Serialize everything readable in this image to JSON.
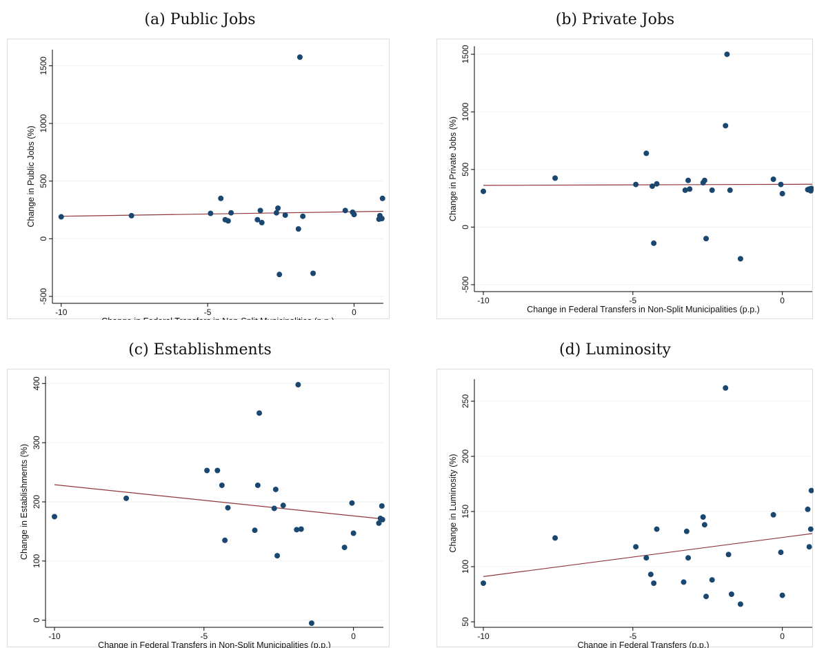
{
  "style": {
    "point_color": "#1a476f",
    "fit_color": "#90353b",
    "grid_color": "#eaf2f3",
    "axis_color": "#000000"
  },
  "chart_data": [
    {
      "type": "scatter",
      "title": "(a) Public Jobs",
      "xlabel": "Change in Federal Transfers in Non-Split Municipalities (p.p.)",
      "ylabel": "Change in Public Jobs (%)",
      "xlim": [
        -10.3,
        1.0
      ],
      "ylim": [
        -560,
        1640
      ],
      "xticks": [
        -10,
        -5,
        0
      ],
      "yticks": [
        -500,
        0,
        500,
        1000,
        1500
      ],
      "points": [
        [
          -10.0,
          190
        ],
        [
          -7.6,
          200
        ],
        [
          -4.9,
          220
        ],
        [
          -4.55,
          350
        ],
        [
          -4.4,
          165
        ],
        [
          -4.3,
          155
        ],
        [
          -4.2,
          225
        ],
        [
          -3.3,
          165
        ],
        [
          -3.2,
          245
        ],
        [
          -3.15,
          140
        ],
        [
          -2.65,
          225
        ],
        [
          -2.6,
          265
        ],
        [
          -2.55,
          -310
        ],
        [
          -2.35,
          205
        ],
        [
          -1.9,
          85
        ],
        [
          -1.85,
          1575
        ],
        [
          -1.75,
          195
        ],
        [
          -1.4,
          -300
        ],
        [
          -0.3,
          245
        ],
        [
          -0.05,
          230
        ],
        [
          0.0,
          210
        ],
        [
          0.85,
          170
        ],
        [
          0.88,
          200
        ],
        [
          0.9,
          175
        ],
        [
          0.95,
          175
        ],
        [
          0.97,
          350
        ]
      ],
      "fit_line": [
        [
          -10.0,
          195
        ],
        [
          1.0,
          238
        ]
      ]
    },
    {
      "type": "scatter",
      "title": "(b) Private Jobs",
      "xlabel": "Change in Federal Transfers in Non-Split Municipalities (p.p.)",
      "ylabel": "Change in Private Jobs (%)",
      "xlim": [
        -10.3,
        1.0
      ],
      "ylim": [
        -560,
        1570
      ],
      "xticks": [
        -10,
        -5,
        0
      ],
      "yticks": [
        -500,
        0,
        500,
        1000,
        1500
      ],
      "points": [
        [
          -10.0,
          310
        ],
        [
          -7.6,
          425
        ],
        [
          -4.9,
          370
        ],
        [
          -4.55,
          640
        ],
        [
          -4.35,
          355
        ],
        [
          -4.3,
          -140
        ],
        [
          -4.2,
          375
        ],
        [
          -3.25,
          320
        ],
        [
          -3.15,
          405
        ],
        [
          -3.1,
          330
        ],
        [
          -2.65,
          385
        ],
        [
          -2.6,
          405
        ],
        [
          -2.55,
          -100
        ],
        [
          -2.35,
          320
        ],
        [
          -1.9,
          880
        ],
        [
          -1.85,
          1500
        ],
        [
          -1.75,
          320
        ],
        [
          -1.4,
          -275
        ],
        [
          -0.3,
          415
        ],
        [
          -0.05,
          370
        ],
        [
          0.0,
          290
        ],
        [
          0.85,
          325
        ],
        [
          0.9,
          330
        ],
        [
          0.95,
          315
        ],
        [
          0.97,
          335
        ]
      ],
      "fit_line": [
        [
          -10.0,
          362
        ],
        [
          1.0,
          372
        ]
      ]
    },
    {
      "type": "scatter",
      "title": "(c) Establishments",
      "xlabel": "Change in Federal Transfers in Non-Split Municipalities (p.p.)",
      "ylabel": "Change in Establishments (%)",
      "xlim": [
        -10.3,
        1.0
      ],
      "ylim": [
        -12,
        412
      ],
      "xticks": [
        -10,
        -5,
        0
      ],
      "yticks": [
        0,
        100,
        200,
        300,
        400
      ],
      "points": [
        [
          -10.0,
          175
        ],
        [
          -7.6,
          206
        ],
        [
          -4.9,
          253
        ],
        [
          -4.55,
          253
        ],
        [
          -4.4,
          228
        ],
        [
          -4.3,
          135
        ],
        [
          -4.2,
          190
        ],
        [
          -3.3,
          152
        ],
        [
          -3.2,
          228
        ],
        [
          -3.15,
          350
        ],
        [
          -2.65,
          189
        ],
        [
          -2.6,
          221
        ],
        [
          -2.55,
          109
        ],
        [
          -2.35,
          194
        ],
        [
          -1.9,
          153
        ],
        [
          -1.85,
          398
        ],
        [
          -1.75,
          154
        ],
        [
          -1.4,
          -5
        ],
        [
          -0.3,
          123
        ],
        [
          -0.05,
          198
        ],
        [
          0.0,
          147
        ],
        [
          0.85,
          164
        ],
        [
          0.9,
          172
        ],
        [
          0.95,
          193
        ],
        [
          0.97,
          170
        ]
      ],
      "fit_line": [
        [
          -10.0,
          229
        ],
        [
          1.0,
          171
        ]
      ]
    },
    {
      "type": "scatter",
      "title": "(d) Luminosity",
      "xlabel": "Change in Federal Transfers (p.p.)",
      "ylabel": "Change in Luminosity (%)",
      "xlim": [
        -10.3,
        1.0
      ],
      "ylim": [
        45,
        270
      ],
      "xticks": [
        -10,
        -5,
        0
      ],
      "yticks": [
        50,
        100,
        150,
        200,
        250
      ],
      "points": [
        [
          -10.0,
          85
        ],
        [
          -7.6,
          126
        ],
        [
          -4.9,
          118
        ],
        [
          -4.55,
          108
        ],
        [
          -4.4,
          93
        ],
        [
          -4.3,
          85
        ],
        [
          -4.2,
          134
        ],
        [
          -3.3,
          86
        ],
        [
          -3.2,
          132
        ],
        [
          -3.15,
          108
        ],
        [
          -2.65,
          145
        ],
        [
          -2.6,
          138
        ],
        [
          -2.55,
          73
        ],
        [
          -2.35,
          88
        ],
        [
          -1.9,
          262
        ],
        [
          -1.8,
          111
        ],
        [
          -1.7,
          75
        ],
        [
          -1.4,
          66
        ],
        [
          -0.3,
          147
        ],
        [
          -0.05,
          113
        ],
        [
          0.0,
          74
        ],
        [
          0.85,
          152
        ],
        [
          0.9,
          118
        ],
        [
          0.95,
          134
        ],
        [
          0.97,
          169
        ]
      ],
      "fit_line": [
        [
          -10.0,
          91
        ],
        [
          1.0,
          130
        ]
      ]
    }
  ]
}
